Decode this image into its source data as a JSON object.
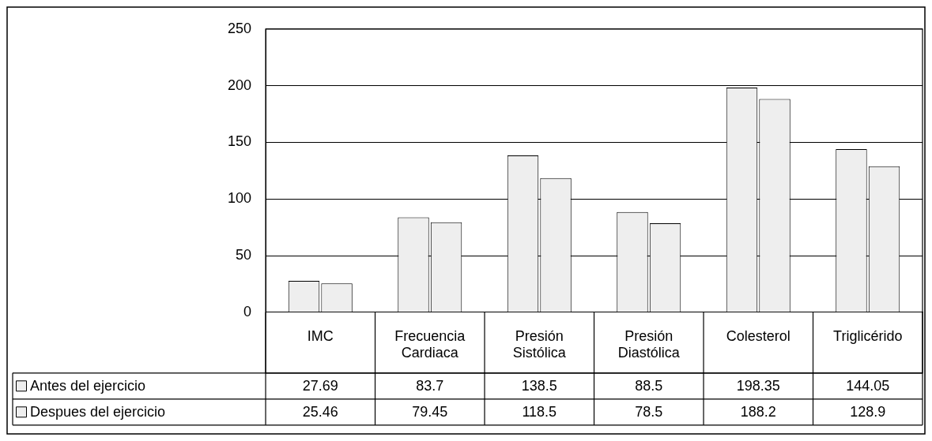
{
  "chart_data": {
    "type": "bar",
    "categories": [
      "IMC",
      "Frecuencia Cardiaca",
      "Presión Sistólica",
      "Presión Diastólica",
      "Colesterol",
      "Triglicérido"
    ],
    "series": [
      {
        "name": "Antes del ejercicio",
        "color": "#eeeeee",
        "values": [
          27.69,
          83.7,
          138.5,
          88.5,
          198.35,
          144.05
        ]
      },
      {
        "name": "Despues del ejercicio",
        "color": "#eeeeee",
        "values": [
          25.46,
          79.45,
          118.5,
          78.5,
          188.2,
          128.9
        ]
      }
    ],
    "ylim": [
      0,
      250
    ],
    "yticks": [
      0,
      50,
      100,
      150,
      200,
      250
    ],
    "grid": "y",
    "legend": "bottom",
    "data_labels": true
  }
}
